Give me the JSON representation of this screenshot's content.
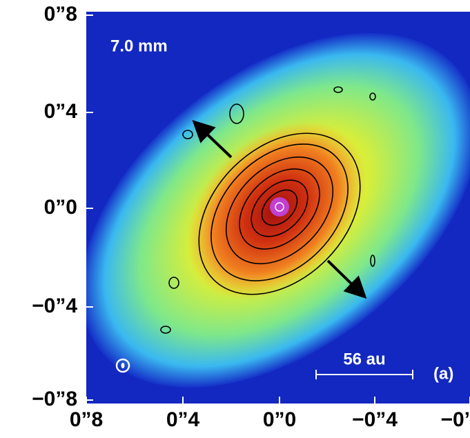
{
  "figure": {
    "label": "7.0 mm",
    "panel": "(a)",
    "scale_bar": "56 au",
    "x_ticks": [
      "0”8",
      "0”4",
      "0”0",
      "−0”4",
      "−0’"
    ],
    "y_ticks": [
      "0”8",
      "0”4",
      "0”0",
      "−0”4",
      "−0”8"
    ]
  }
}
